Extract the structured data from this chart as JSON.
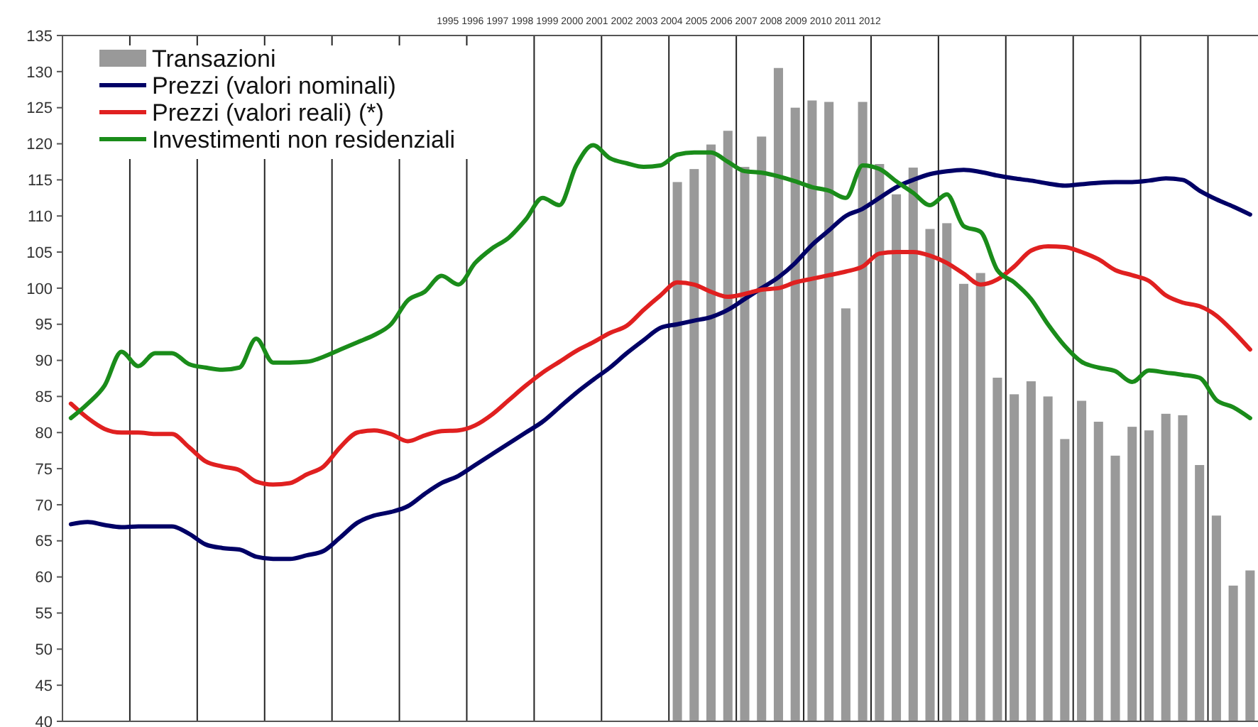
{
  "chart_data": {
    "type": "bar",
    "title": "1995 1996 1997 1998 1999 2000 2001 2002 2003 2004 2005 2006 2007 2008 2009 2010 2011 2012",
    "categories": [
      null,
      null,
      null,
      null,
      null,
      null,
      null,
      null,
      null,
      null,
      null,
      null,
      null,
      null,
      null,
      null,
      null,
      null,
      null,
      null,
      null,
      null,
      null,
      null,
      null,
      null,
      null,
      null,
      null,
      null,
      null,
      null,
      null,
      null,
      null,
      null,
      null,
      null,
      null,
      null,
      null,
      null,
      null,
      null,
      null,
      null,
      null,
      null,
      null,
      null,
      null,
      null,
      null,
      null,
      null,
      null,
      null,
      null,
      null,
      null,
      null,
      null,
      null,
      null,
      null,
      null,
      null,
      null,
      null,
      null,
      null
    ],
    "ylim": [
      40,
      135
    ],
    "yticks": [
      40,
      45,
      50,
      55,
      60,
      65,
      70,
      75,
      80,
      85,
      90,
      95,
      100,
      105,
      110,
      115,
      120,
      125,
      130,
      135
    ],
    "grid": "x",
    "legend": "top left",
    "tick_labels": "y",
    "series": [
      {
        "name": "Transazioni",
        "color": "#999999",
        "values": [
          null,
          null,
          null,
          null,
          null,
          null,
          null,
          null,
          null,
          null,
          null,
          null,
          null,
          null,
          null,
          null,
          null,
          null,
          null,
          null,
          null,
          null,
          null,
          null,
          null,
          null,
          null,
          null,
          null,
          null,
          null,
          null,
          null,
          null,
          null,
          null,
          114.7,
          116.5,
          119.9,
          121.8,
          116.8,
          121,
          130.5,
          125,
          126,
          125.8,
          97.2,
          125.8,
          117.2,
          113,
          116.7,
          108.2,
          109,
          100.6,
          102.1,
          87.6,
          85.3,
          87.1,
          85,
          79.1,
          84.4,
          81.5,
          76.8,
          80.8,
          80.3,
          82.6,
          82.4,
          75.5,
          68.5,
          58.8,
          60.9
        ]
      },
      {
        "name": "Prezzi (valori nominali)",
        "type": "line",
        "color": "#000066",
        "values": [
          67.3,
          67.6,
          67.2,
          66.9,
          67,
          67,
          67,
          66,
          64.5,
          64,
          63.8,
          62.8,
          62.5,
          62.5,
          63,
          63.6,
          65.5,
          67.5,
          68.5,
          69,
          69.8,
          71.5,
          73,
          74,
          75.5,
          77,
          78.5,
          80,
          81.5,
          83.5,
          85.5,
          87.3,
          89,
          91,
          92.8,
          94.5,
          95,
          95.5,
          96,
          97,
          98.5,
          100,
          101.5,
          103.5,
          106,
          108,
          110,
          111,
          112.5,
          114,
          115,
          115.8,
          116.2,
          116.4,
          116.1,
          115.6,
          115.2,
          114.9,
          114.5,
          114.2,
          114.4,
          114.6,
          114.7,
          114.7,
          114.9,
          115.2,
          115,
          113.5,
          112.3,
          111.3,
          110.2
        ]
      },
      {
        "name": "Prezzi (valori reali) (*)",
        "type": "line",
        "color": "#e02020",
        "values": [
          84,
          82,
          80.5,
          80,
          80,
          79.8,
          79.8,
          78,
          76,
          75.3,
          74.8,
          73.2,
          72.8,
          73,
          74.2,
          75.3,
          78,
          80,
          80.3,
          79.8,
          78.8,
          79.6,
          80.2,
          80.3,
          81,
          82.5,
          84.5,
          86.5,
          88.3,
          89.8,
          91.3,
          92.5,
          93.8,
          94.8,
          97,
          99,
          100.8,
          100.5,
          99.5,
          98.8,
          99.2,
          99.8,
          100,
          100.8,
          101.3,
          101.8,
          102.3,
          103,
          104.8,
          105,
          105,
          104.5,
          103.5,
          102,
          100.5,
          101.2,
          103,
          105.2,
          105.8,
          105.7,
          105,
          104,
          102.5,
          101.8,
          101,
          99,
          98,
          97.5,
          96.2,
          94,
          91.5
        ]
      },
      {
        "name": "Investimenti non residenziali",
        "type": "line",
        "color": "#1a8c1a",
        "values": [
          82,
          84,
          86.5,
          91.2,
          89.2,
          91,
          91,
          89.5,
          89,
          88.7,
          89,
          93,
          89.7,
          89.7,
          89.8,
          90.5,
          91.5,
          92.5,
          93.5,
          95,
          98.3,
          99.5,
          101.7,
          100.5,
          103.5,
          105.5,
          107,
          109.5,
          112.5,
          111.5,
          117,
          119.8,
          118,
          117.3,
          116.8,
          117,
          118.5,
          118.8,
          118.8,
          117.5,
          116.2,
          116,
          115.5,
          114.8,
          114,
          113.5,
          112.5,
          117,
          116.5,
          114.8,
          113.2,
          111.5,
          113,
          108.6,
          107.8,
          102.5,
          100.8,
          98.5,
          95,
          92,
          89.8,
          89,
          88.5,
          87,
          88.6,
          88.3,
          88,
          87.6,
          84.5,
          83.5,
          82
        ]
      }
    ]
  }
}
